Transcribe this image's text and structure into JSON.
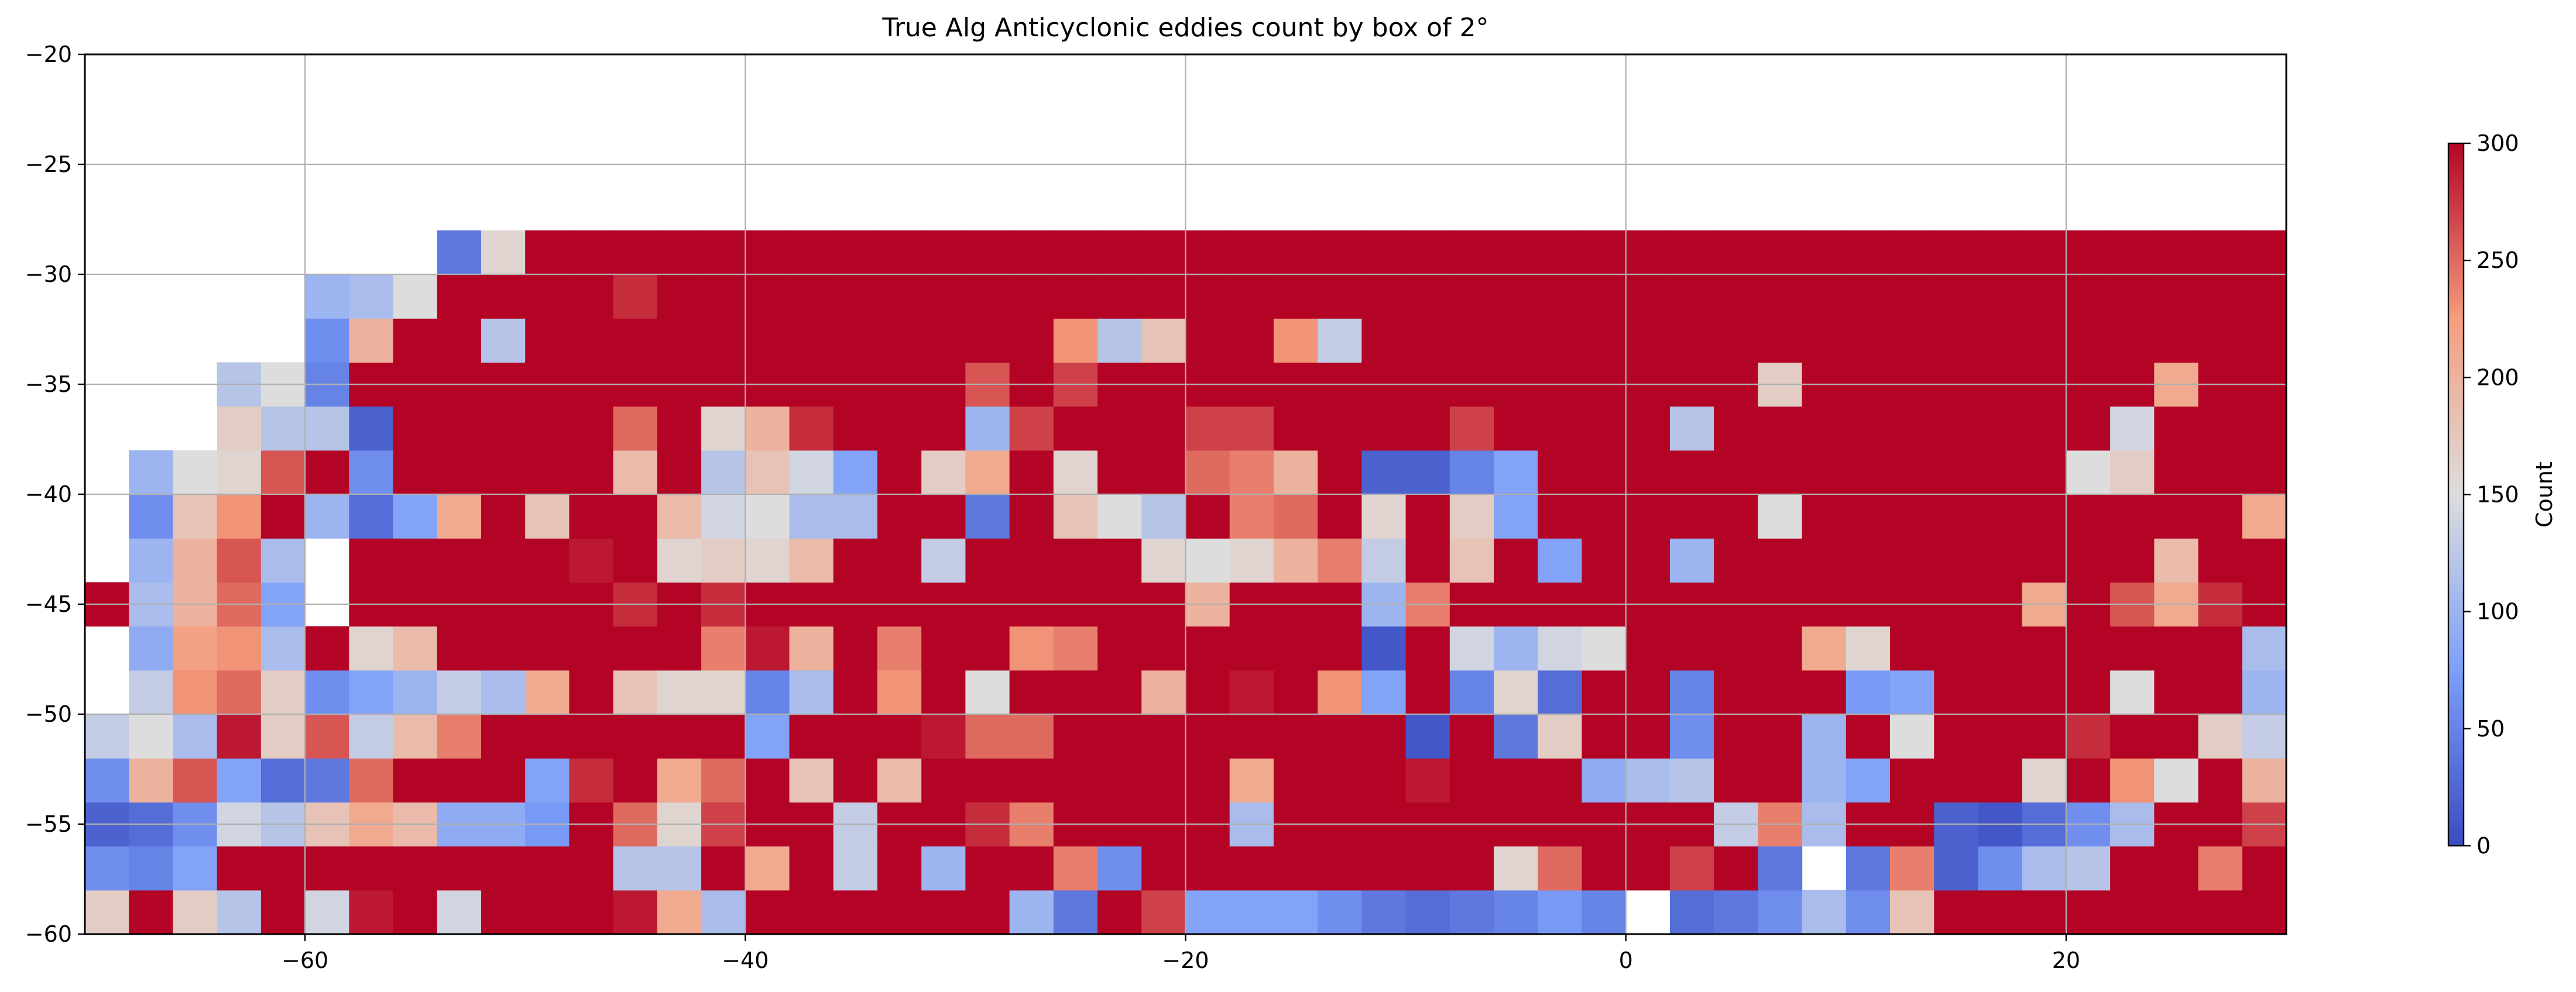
{
  "chart_data": {
    "type": "heatmap",
    "title": "True Alg Anticyclonic eddies count by box of 2°",
    "xlabel": "",
    "ylabel": "",
    "colorbar_label": "Count",
    "xlim": [
      -70,
      30
    ],
    "ylim": [
      -60,
      -20
    ],
    "x_ticks": [
      "−60",
      "−40",
      "−20",
      "0",
      "20"
    ],
    "x_tick_values": [
      -60,
      -40,
      -20,
      0,
      20
    ],
    "y_ticks": [
      "−20",
      "−25",
      "−30",
      "−35",
      "−40",
      "−45",
      "−50",
      "−55",
      "−60"
    ],
    "y_tick_values": [
      -20,
      -25,
      -30,
      -35,
      -40,
      -45,
      -50,
      -55,
      -60
    ],
    "colorbar_ticks": [
      "0",
      "50",
      "100",
      "150",
      "200",
      "250",
      "300"
    ],
    "colorbar_tick_values": [
      0,
      50,
      100,
      150,
      200,
      250,
      300
    ],
    "vmin": 0,
    "vmax": 300,
    "colormap": "coolwarm",
    "grid": true,
    "bin_size": 2,
    "x_edges_start": -70,
    "y_edges_start": -60,
    "grid_values": [
      [
        170,
        300,
        170,
        120,
        300,
        140,
        290,
        300,
        140,
        300,
        300,
        300,
        290,
        210,
        110,
        300,
        300,
        300,
        300,
        300,
        300,
        100,
        40,
        300,
        270,
        80,
        80,
        80,
        60,
        40,
        30,
        40,
        50,
        70,
        50,
        null,
        30,
        40,
        60,
        110,
        60,
        180,
        300,
        300,
        300,
        300,
        300,
        300,
        300,
        300,
        170
      ],
      [
        60,
        50,
        80,
        300,
        300,
        300,
        300,
        300,
        300,
        300,
        300,
        300,
        120,
        120,
        300,
        210,
        300,
        130,
        300,
        100,
        300,
        300,
        240,
        60,
        300,
        300,
        300,
        300,
        300,
        300,
        300,
        300,
        160,
        250,
        300,
        300,
        270,
        300,
        40,
        null,
        40,
        240,
        20,
        60,
        110,
        120,
        300,
        300,
        240,
        300,
        300
      ],
      [
        20,
        30,
        60,
        140,
        120,
        180,
        210,
        190,
        90,
        90,
        70,
        300,
        250,
        160,
        270,
        300,
        300,
        130,
        300,
        300,
        280,
        240,
        300,
        300,
        300,
        300,
        110,
        300,
        300,
        300,
        300,
        300,
        300,
        300,
        300,
        300,
        300,
        130,
        240,
        110,
        300,
        300,
        20,
        10,
        30,
        60,
        110,
        300,
        300,
        270,
        300
      ],
      [
        60,
        200,
        260,
        80,
        30,
        40,
        250,
        300,
        300,
        300,
        80,
        280,
        300,
        210,
        250,
        300,
        180,
        300,
        190,
        300,
        300,
        300,
        300,
        300,
        300,
        300,
        210,
        300,
        300,
        300,
        290,
        300,
        300,
        300,
        90,
        110,
        120,
        300,
        300,
        100,
        80,
        300,
        300,
        300,
        160,
        300,
        230,
        150,
        300,
        200,
        300
      ],
      [
        130,
        150,
        110,
        290,
        170,
        260,
        130,
        190,
        240,
        300,
        300,
        300,
        300,
        300,
        300,
        80,
        300,
        300,
        300,
        290,
        250,
        250,
        300,
        300,
        300,
        300,
        300,
        300,
        300,
        300,
        10,
        300,
        40,
        170,
        300,
        300,
        60,
        300,
        300,
        100,
        300,
        150,
        300,
        300,
        300,
        280,
        300,
        300,
        170,
        130,
        160
      ],
      [
        null,
        130,
        230,
        250,
        170,
        60,
        80,
        100,
        130,
        110,
        210,
        300,
        180,
        160,
        160,
        50,
        110,
        300,
        230,
        300,
        150,
        300,
        300,
        300,
        200,
        300,
        290,
        300,
        230,
        80,
        300,
        50,
        160,
        30,
        300,
        300,
        50,
        300,
        300,
        300,
        70,
        80,
        300,
        300,
        300,
        300,
        150,
        300,
        300,
        100,
        50
      ],
      [
        null,
        90,
        220,
        230,
        110,
        300,
        160,
        190,
        300,
        300,
        300,
        300,
        300,
        300,
        240,
        290,
        200,
        300,
        240,
        300,
        300,
        230,
        240,
        300,
        300,
        300,
        300,
        300,
        300,
        10,
        300,
        140,
        100,
        140,
        150,
        300,
        300,
        300,
        300,
        210,
        160,
        300,
        300,
        300,
        300,
        300,
        300,
        300,
        300,
        110,
        60
      ],
      [
        300,
        110,
        200,
        250,
        80,
        null,
        300,
        300,
        300,
        300,
        300,
        300,
        280,
        300,
        280,
        300,
        300,
        300,
        300,
        300,
        300,
        300,
        300,
        300,
        300,
        200,
        300,
        300,
        300,
        100,
        240,
        300,
        300,
        300,
        300,
        300,
        300,
        300,
        300,
        300,
        300,
        300,
        300,
        300,
        210,
        300,
        260,
        210,
        280,
        300,
        300
      ],
      [
        null,
        100,
        200,
        260,
        110,
        null,
        300,
        300,
        300,
        300,
        300,
        290,
        300,
        160,
        170,
        160,
        190,
        300,
        300,
        130,
        300,
        300,
        300,
        300,
        160,
        150,
        160,
        200,
        240,
        130,
        300,
        180,
        300,
        80,
        300,
        300,
        100,
        300,
        300,
        300,
        300,
        300,
        300,
        300,
        300,
        300,
        300,
        190,
        300,
        300,
        300
      ],
      [
        null,
        60,
        180,
        230,
        300,
        100,
        30,
        80,
        210,
        300,
        180,
        300,
        300,
        190,
        140,
        150,
        110,
        110,
        300,
        300,
        40,
        300,
        180,
        150,
        120,
        300,
        240,
        250,
        300,
        160,
        300,
        170,
        80,
        300,
        300,
        300,
        300,
        300,
        150,
        300,
        300,
        300,
        300,
        300,
        300,
        300,
        300,
        300,
        300,
        210,
        300
      ],
      [
        null,
        100,
        150,
        160,
        260,
        300,
        60,
        300,
        300,
        300,
        300,
        300,
        190,
        300,
        120,
        180,
        140,
        80,
        300,
        170,
        210,
        300,
        160,
        300,
        300,
        250,
        240,
        200,
        300,
        20,
        20,
        50,
        80,
        300,
        300,
        300,
        300,
        300,
        300,
        300,
        300,
        300,
        300,
        300,
        300,
        150,
        170,
        300,
        300,
        300,
        300
      ],
      [
        null,
        null,
        null,
        170,
        120,
        120,
        20,
        300,
        300,
        300,
        300,
        300,
        250,
        300,
        160,
        200,
        280,
        300,
        300,
        300,
        100,
        270,
        300,
        300,
        300,
        270,
        270,
        300,
        300,
        300,
        300,
        270,
        300,
        300,
        300,
        300,
        120,
        300,
        300,
        300,
        300,
        300,
        300,
        300,
        300,
        300,
        140,
        300,
        300,
        300,
        300
      ],
      [
        null,
        null,
        null,
        120,
        150,
        50,
        300,
        300,
        300,
        300,
        300,
        300,
        300,
        300,
        300,
        300,
        300,
        300,
        300,
        300,
        260,
        300,
        270,
        300,
        300,
        300,
        300,
        300,
        300,
        300,
        300,
        300,
        300,
        300,
        300,
        300,
        300,
        300,
        170,
        300,
        300,
        300,
        300,
        300,
        300,
        300,
        300,
        210,
        300,
        300,
        300
      ],
      [
        null,
        null,
        null,
        null,
        null,
        60,
        200,
        300,
        300,
        120,
        300,
        300,
        300,
        300,
        300,
        300,
        300,
        300,
        300,
        300,
        300,
        300,
        230,
        120,
        180,
        300,
        300,
        230,
        130,
        300,
        300,
        300,
        300,
        300,
        300,
        300,
        300,
        300,
        300,
        300,
        300,
        300,
        300,
        300,
        300,
        300,
        300,
        300,
        300,
        300,
        300
      ],
      [
        null,
        null,
        null,
        null,
        null,
        100,
        110,
        150,
        300,
        300,
        300,
        300,
        280,
        300,
        300,
        300,
        300,
        300,
        300,
        300,
        300,
        300,
        300,
        300,
        300,
        300,
        300,
        300,
        300,
        300,
        300,
        300,
        300,
        300,
        300,
        300,
        300,
        300,
        300,
        300,
        300,
        300,
        300,
        300,
        300,
        300,
        300,
        300,
        300,
        300,
        300
      ],
      [
        null,
        null,
        null,
        null,
        null,
        null,
        null,
        null,
        40,
        160,
        300,
        300,
        300,
        300,
        300,
        300,
        300,
        300,
        300,
        300,
        300,
        300,
        300,
        300,
        300,
        300,
        300,
        300,
        300,
        300,
        300,
        300,
        300,
        300,
        300,
        300,
        300,
        300,
        300,
        300,
        300,
        300,
        300,
        300,
        300,
        300,
        300,
        300,
        300,
        300,
        300
      ],
      [
        null,
        null,
        null,
        null,
        null,
        null,
        null,
        null,
        null,
        null,
        null,
        null,
        null,
        null,
        null,
        null,
        null,
        null,
        null,
        null,
        null,
        null,
        null,
        null,
        null,
        null,
        null,
        null,
        null,
        null,
        null,
        null,
        null,
        null,
        null,
        null,
        null,
        null,
        null,
        null,
        null,
        null,
        null,
        null,
        null,
        null,
        null,
        null,
        null,
        null,
        null
      ],
      [
        null,
        null,
        null,
        null,
        null,
        null,
        null,
        null,
        null,
        null,
        null,
        null,
        null,
        null,
        null,
        null,
        null,
        null,
        null,
        null,
        null,
        null,
        null,
        null,
        null,
        null,
        null,
        null,
        null,
        null,
        null,
        null,
        null,
        null,
        null,
        null,
        null,
        null,
        null,
        null,
        null,
        null,
        null,
        null,
        null,
        null,
        null,
        null,
        null,
        null,
        null
      ],
      [
        null,
        null,
        null,
        null,
        null,
        null,
        null,
        null,
        null,
        null,
        null,
        null,
        null,
        null,
        null,
        null,
        null,
        null,
        null,
        null,
        null,
        null,
        null,
        null,
        null,
        null,
        null,
        null,
        null,
        null,
        null,
        null,
        null,
        null,
        null,
        null,
        null,
        null,
        null,
        null,
        null,
        null,
        null,
        null,
        null,
        null,
        null,
        null,
        null,
        null,
        null
      ],
      [
        null,
        null,
        null,
        null,
        null,
        null,
        null,
        null,
        null,
        null,
        null,
        null,
        null,
        null,
        null,
        null,
        null,
        null,
        null,
        null,
        null,
        null,
        null,
        null,
        null,
        null,
        null,
        null,
        null,
        null,
        null,
        null,
        null,
        null,
        null,
        null,
        null,
        null,
        null,
        null,
        null,
        null,
        null,
        null,
        null,
        null,
        null,
        null,
        null,
        null,
        null
      ]
    ]
  }
}
